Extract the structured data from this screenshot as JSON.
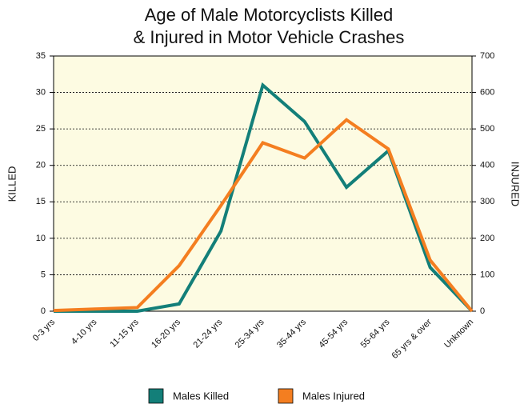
{
  "chart_data": {
    "type": "line",
    "title": [
      "Age of Male Motorcyclists Killed",
      "& Injured in Motor Vehicle Crashes"
    ],
    "ylabel": "KILLED",
    "y2label": "INJURED",
    "categories": [
      "0-3 yrs",
      "4-10 yrs",
      "11-15 yrs",
      "16-20 yrs",
      "21-24 yrs",
      "25-34 yrs",
      "35-44 yrs",
      "45-54 yrs",
      "55-64 yrs",
      "65 yrs & over",
      "Unknown"
    ],
    "series": [
      {
        "name": "Males Killed",
        "color": "#137f79",
        "values": [
          0,
          0,
          0,
          1,
          11,
          31,
          26,
          17,
          22,
          6,
          0
        ]
      },
      {
        "name": "Males Injured",
        "color": "#f47e20",
        "axis": "y2",
        "values": [
          2,
          6,
          10,
          125,
          290,
          462,
          420,
          525,
          445,
          140,
          0
        ]
      }
    ],
    "ylim": [
      0,
      35
    ],
    "yticks": [
      0,
      5,
      10,
      15,
      20,
      25,
      30,
      35
    ],
    "y2lim": [
      0,
      700
    ],
    "y2ticks": [
      0,
      100,
      200,
      300,
      400,
      500,
      600,
      700
    ],
    "grid": true,
    "legend": "bottom"
  }
}
